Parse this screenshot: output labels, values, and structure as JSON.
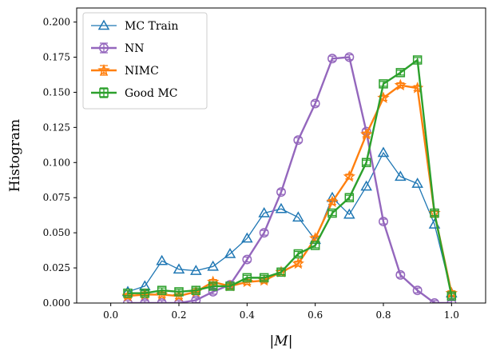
{
  "chart_data": {
    "type": "line",
    "xlabel": "|M|",
    "ylabel": "Histogram",
    "xlim": [
      -0.1,
      1.1
    ],
    "ylim": [
      0.0,
      0.21
    ],
    "xticks": [
      "0.0",
      "0.2",
      "0.4",
      "0.6",
      "0.8",
      "1.0"
    ],
    "xtick_values": [
      0.0,
      0.2,
      0.4,
      0.6,
      0.8,
      1.0
    ],
    "yticks": [
      "0.000",
      "0.025",
      "0.050",
      "0.075",
      "0.100",
      "0.125",
      "0.150",
      "0.175",
      "0.200"
    ],
    "ytick_values": [
      0.0,
      0.025,
      0.05,
      0.075,
      0.1,
      0.125,
      0.15,
      0.175,
      0.2
    ],
    "grid": false,
    "legend_position": "top-left",
    "series": [
      {
        "name": "MC Train",
        "color": "#1f77b4",
        "marker": "triangle",
        "x": [
          0.05,
          0.1,
          0.15,
          0.2,
          0.25,
          0.3,
          0.35,
          0.4,
          0.45,
          0.5,
          0.55,
          0.6,
          0.65,
          0.7,
          0.75,
          0.8,
          0.85,
          0.9,
          0.95,
          1.0
        ],
        "y": [
          0.008,
          0.012,
          0.03,
          0.024,
          0.023,
          0.026,
          0.035,
          0.046,
          0.064,
          0.067,
          0.061,
          0.045,
          0.075,
          0.063,
          0.083,
          0.107,
          0.09,
          0.085,
          0.056,
          0.007
        ]
      },
      {
        "name": "NN",
        "color": "#9467bd",
        "marker": "circle",
        "x": [
          0.05,
          0.1,
          0.15,
          0.2,
          0.25,
          0.3,
          0.35,
          0.4,
          0.45,
          0.5,
          0.55,
          0.6,
          0.65,
          0.7,
          0.75,
          0.8,
          0.85,
          0.9,
          0.95,
          1.0
        ],
        "y": [
          0.0,
          0.0,
          0.0,
          0.0,
          0.002,
          0.008,
          0.013,
          0.031,
          0.05,
          0.079,
          0.116,
          0.142,
          0.174,
          0.175,
          0.122,
          0.058,
          0.02,
          0.009,
          0.0,
          0.0
        ]
      },
      {
        "name": "NIMC",
        "color": "#ff7f0e",
        "marker": "star",
        "x": [
          0.05,
          0.1,
          0.15,
          0.2,
          0.25,
          0.3,
          0.35,
          0.4,
          0.45,
          0.5,
          0.55,
          0.6,
          0.65,
          0.7,
          0.75,
          0.8,
          0.85,
          0.9,
          0.95,
          1.0
        ],
        "y": [
          0.005,
          0.006,
          0.006,
          0.005,
          0.008,
          0.015,
          0.012,
          0.015,
          0.016,
          0.022,
          0.028,
          0.046,
          0.072,
          0.09,
          0.12,
          0.146,
          0.155,
          0.153,
          0.064,
          0.007
        ]
      },
      {
        "name": "Good MC",
        "color": "#2ca02c",
        "marker": "square",
        "x": [
          0.05,
          0.1,
          0.15,
          0.2,
          0.25,
          0.3,
          0.35,
          0.4,
          0.45,
          0.5,
          0.55,
          0.6,
          0.65,
          0.7,
          0.75,
          0.8,
          0.85,
          0.9,
          0.95,
          1.0
        ],
        "y": [
          0.007,
          0.007,
          0.009,
          0.008,
          0.009,
          0.012,
          0.012,
          0.018,
          0.018,
          0.022,
          0.035,
          0.041,
          0.064,
          0.075,
          0.1,
          0.156,
          0.164,
          0.173,
          0.064,
          0.005
        ]
      }
    ]
  }
}
